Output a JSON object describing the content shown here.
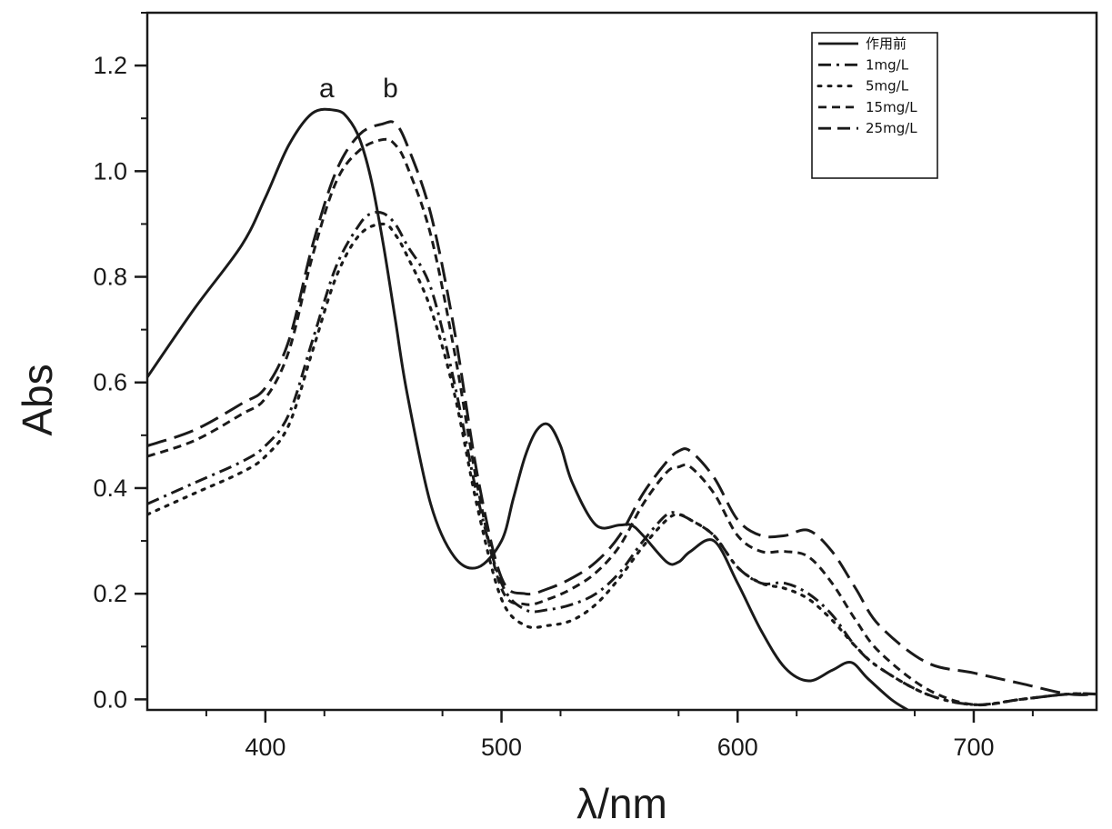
{
  "chart_data": {
    "type": "line",
    "title": "",
    "xlabel": "λ/nm",
    "ylabel": "Abs",
    "xlim": [
      350,
      752
    ],
    "ylim": [
      -0.02,
      1.3
    ],
    "xticks": [
      400,
      500,
      600,
      700
    ],
    "xtick_labels": [
      "400",
      "500",
      "600",
      "700"
    ],
    "yticks": [
      0.0,
      0.2,
      0.4,
      0.6,
      0.8,
      1.0,
      1.2
    ],
    "ytick_labels": [
      "0.0",
      "0.2",
      "0.4",
      "0.6",
      "0.8",
      "1.0",
      "1.2"
    ],
    "grid": false,
    "legend_position": "top-right",
    "annotations": [
      {
        "text": "a",
        "x": 426,
        "y": 1.14
      },
      {
        "text": "b",
        "x": 453,
        "y": 1.14
      }
    ],
    "series": [
      {
        "name": "作用前",
        "style": "solid",
        "x": [
          350,
          370,
          390,
          400,
          410,
          420,
          430,
          435,
          440,
          445,
          450,
          455,
          460,
          470,
          480,
          490,
          500,
          505,
          510,
          515,
          520,
          525,
          530,
          540,
          550,
          555,
          560,
          570,
          575,
          580,
          590,
          600,
          610,
          620,
          630,
          640,
          648,
          655,
          665,
          672
        ],
        "y": [
          0.61,
          0.74,
          0.86,
          0.95,
          1.05,
          1.11,
          1.115,
          1.1,
          1.06,
          0.98,
          0.86,
          0.72,
          0.58,
          0.37,
          0.27,
          0.25,
          0.3,
          0.38,
          0.46,
          0.51,
          0.52,
          0.48,
          0.41,
          0.33,
          0.33,
          0.33,
          0.31,
          0.26,
          0.26,
          0.28,
          0.3,
          0.22,
          0.13,
          0.06,
          0.035,
          0.055,
          0.07,
          0.04,
          0.0,
          -0.02
        ]
      },
      {
        "name": "1mg/L",
        "style": "dashdot",
        "x": [
          350,
          370,
          390,
          400,
          410,
          420,
          430,
          440,
          445,
          450,
          455,
          460,
          470,
          480,
          490,
          500,
          510,
          520,
          530,
          540,
          550,
          560,
          570,
          575,
          580,
          590,
          600,
          610,
          620,
          630,
          640,
          650,
          660,
          680,
          700,
          720,
          740,
          752
        ],
        "y": [
          0.37,
          0.41,
          0.45,
          0.48,
          0.54,
          0.68,
          0.82,
          0.9,
          0.92,
          0.92,
          0.9,
          0.86,
          0.78,
          0.6,
          0.38,
          0.22,
          0.17,
          0.17,
          0.18,
          0.2,
          0.24,
          0.3,
          0.35,
          0.35,
          0.34,
          0.31,
          0.25,
          0.22,
          0.22,
          0.2,
          0.16,
          0.1,
          0.06,
          0.01,
          -0.01,
          0.0,
          0.01,
          0.01
        ]
      },
      {
        "name": "5mg/L",
        "style": "dotted",
        "x": [
          350,
          370,
          390,
          400,
          410,
          420,
          430,
          440,
          450,
          455,
          460,
          470,
          480,
          490,
          500,
          510,
          520,
          530,
          540,
          550,
          560,
          570,
          575,
          580,
          590,
          600,
          610,
          620,
          630,
          640,
          650,
          660,
          680,
          700,
          720,
          740,
          752
        ],
        "y": [
          0.35,
          0.39,
          0.43,
          0.46,
          0.52,
          0.66,
          0.8,
          0.88,
          0.9,
          0.88,
          0.84,
          0.74,
          0.58,
          0.36,
          0.19,
          0.14,
          0.14,
          0.15,
          0.18,
          0.23,
          0.29,
          0.34,
          0.35,
          0.34,
          0.31,
          0.25,
          0.22,
          0.21,
          0.19,
          0.15,
          0.1,
          0.06,
          0.01,
          -0.01,
          0.0,
          0.01,
          0.01
        ]
      },
      {
        "name": "15mg/L",
        "style": "shortdash",
        "x": [
          350,
          370,
          390,
          400,
          410,
          420,
          430,
          440,
          450,
          455,
          460,
          470,
          480,
          490,
          500,
          510,
          520,
          530,
          540,
          550,
          560,
          570,
          575,
          580,
          590,
          600,
          610,
          620,
          630,
          640,
          650,
          660,
          680,
          700,
          720,
          740,
          752
        ],
        "y": [
          0.46,
          0.49,
          0.54,
          0.57,
          0.66,
          0.84,
          0.98,
          1.04,
          1.06,
          1.05,
          1.01,
          0.88,
          0.66,
          0.4,
          0.21,
          0.18,
          0.19,
          0.21,
          0.24,
          0.29,
          0.37,
          0.43,
          0.44,
          0.44,
          0.39,
          0.31,
          0.28,
          0.28,
          0.27,
          0.22,
          0.15,
          0.09,
          0.02,
          -0.01,
          0.0,
          0.01,
          0.01
        ]
      },
      {
        "name": "25mg/L",
        "style": "longdash",
        "x": [
          350,
          370,
          390,
          400,
          410,
          420,
          430,
          440,
          450,
          455,
          460,
          470,
          480,
          490,
          500,
          510,
          520,
          530,
          540,
          550,
          560,
          570,
          575,
          580,
          590,
          600,
          610,
          620,
          630,
          640,
          650,
          660,
          680,
          700,
          720,
          740,
          752
        ],
        "y": [
          0.48,
          0.51,
          0.56,
          0.59,
          0.68,
          0.86,
          1.0,
          1.07,
          1.09,
          1.09,
          1.05,
          0.92,
          0.7,
          0.42,
          0.23,
          0.2,
          0.21,
          0.23,
          0.26,
          0.31,
          0.39,
          0.45,
          0.47,
          0.47,
          0.42,
          0.34,
          0.31,
          0.31,
          0.32,
          0.28,
          0.21,
          0.14,
          0.07,
          0.05,
          0.03,
          0.01,
          0.01
        ]
      }
    ]
  }
}
